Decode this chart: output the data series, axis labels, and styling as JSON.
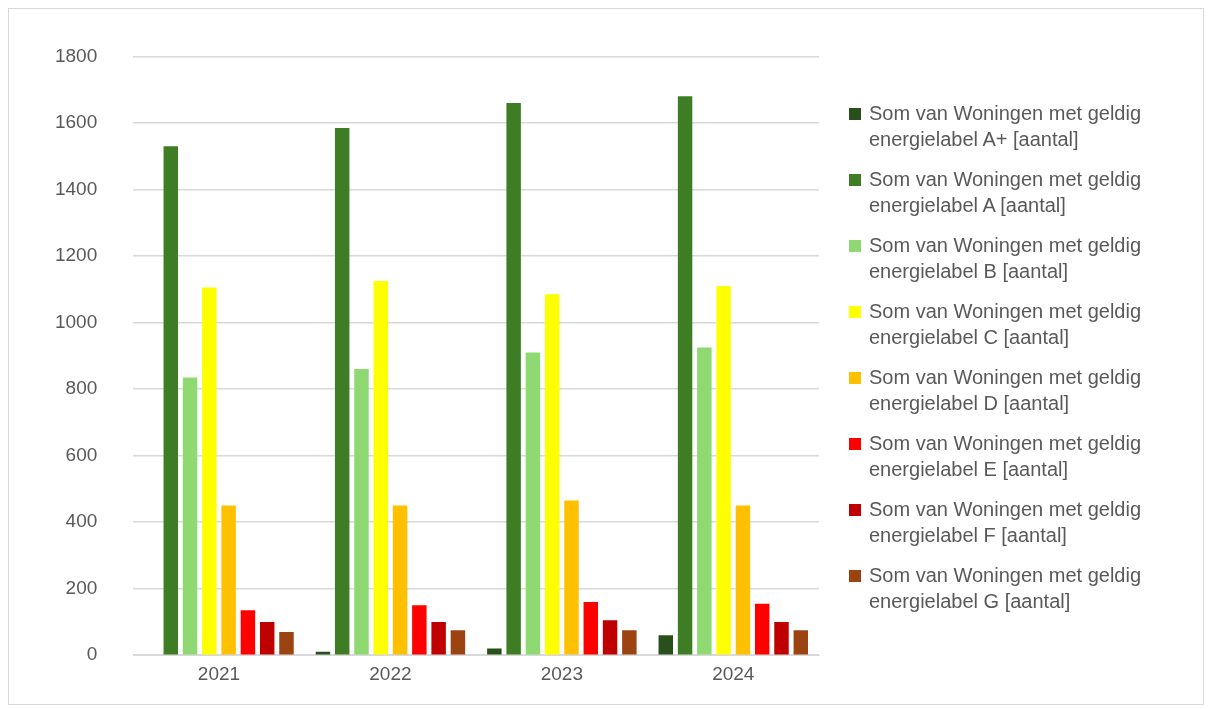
{
  "chart_data": {
    "type": "bar",
    "categories": [
      "2021",
      "2022",
      "2023",
      "2024"
    ],
    "series": [
      {
        "name": "Som van Woningen met geldig energielabel A+ [aantal]",
        "color": "#27501a",
        "values": [
          0,
          10,
          20,
          60
        ]
      },
      {
        "name": "Som van Woningen met geldig energielabel A [aantal]",
        "color": "#3e7d23",
        "values": [
          1530,
          1585,
          1660,
          1680
        ]
      },
      {
        "name": "Som van Woningen met geldig energielabel B [aantal]",
        "color": "#8fd973",
        "values": [
          835,
          860,
          910,
          925
        ]
      },
      {
        "name": "Som van Woningen met geldig energielabel C [aantal]",
        "color": "#ffff00",
        "values": [
          1105,
          1125,
          1085,
          1110
        ]
      },
      {
        "name": "Som van Woningen met geldig energielabel D [aantal]",
        "color": "#ffc000",
        "values": [
          450,
          450,
          465,
          450
        ]
      },
      {
        "name": "Som van Woningen met geldig energielabel E [aantal]",
        "color": "#ff0000",
        "values": [
          135,
          150,
          160,
          155
        ]
      },
      {
        "name": "Som van Woningen met geldig energielabel F [aantal]",
        "color": "#c00000",
        "values": [
          100,
          100,
          105,
          100
        ]
      },
      {
        "name": "Som van Woningen met geldig energielabel G [aantal]",
        "color": "#9c4312",
        "values": [
          70,
          75,
          75,
          75
        ]
      }
    ],
    "ylim": [
      0,
      1800
    ],
    "yticks": [
      0,
      200,
      400,
      600,
      800,
      1000,
      1200,
      1400,
      1600,
      1800
    ],
    "grid": "y",
    "legend": "right"
  }
}
